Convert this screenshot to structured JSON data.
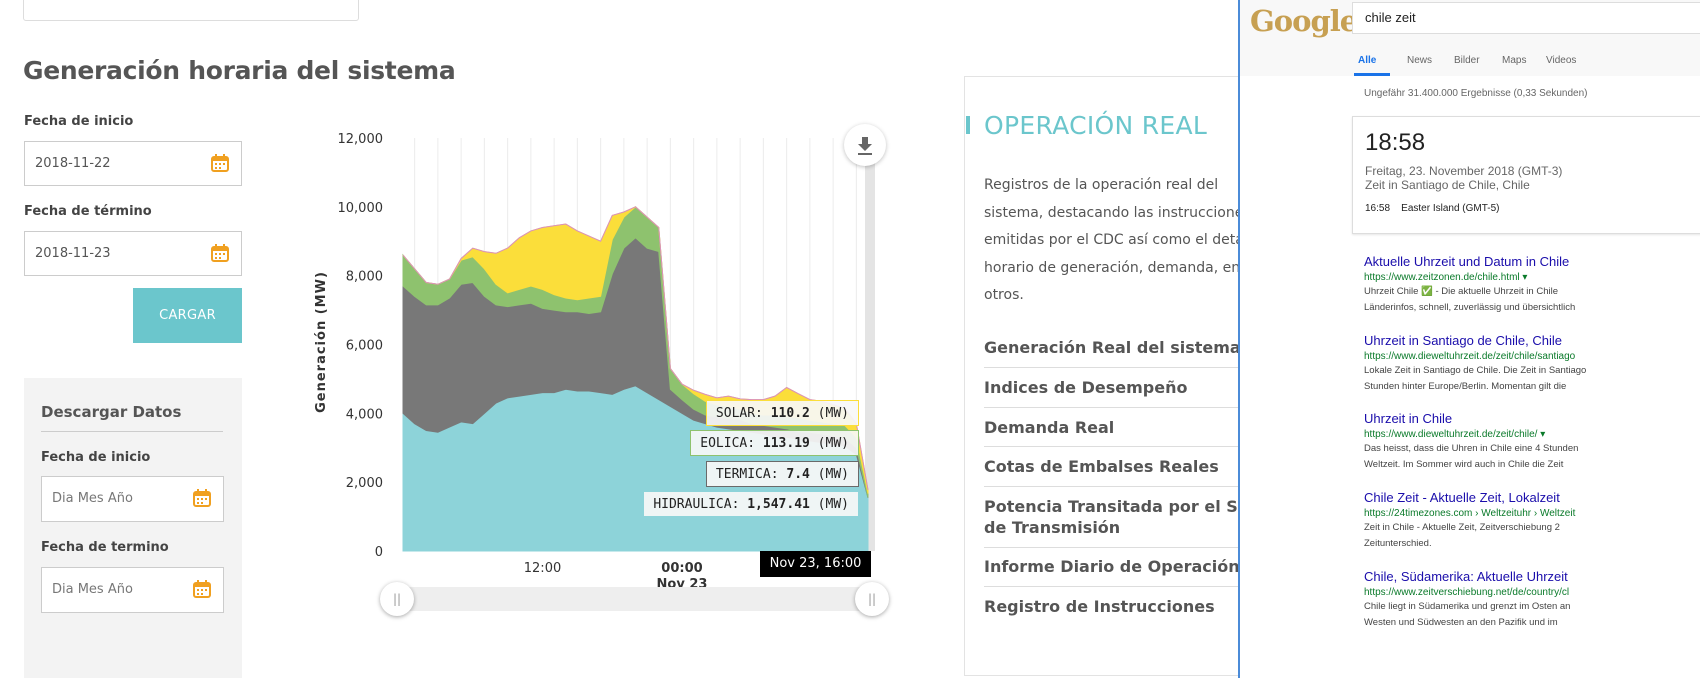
{
  "page": {
    "title": "Generación horaria del sistema",
    "fecha_inicio_label": "Fecha de inicio",
    "fecha_inicio_value": "2018-11-22",
    "fecha_termino_label": "Fecha de término",
    "fecha_termino_value": "2018-11-23",
    "cargar_label": "CARGAR",
    "descargar": {
      "title": "Descargar Datos",
      "inicio_label": "Fecha de inicio",
      "inicio_placeholder": "Dia Mes Año",
      "termino_label": "Fecha de termino",
      "termino_placeholder": "Dia Mes Año"
    },
    "accent_color": "#6bc6cc",
    "icon_color": "#f0a020"
  },
  "chart_data": {
    "type": "area",
    "stacked": true,
    "ylabel": "Generación (MW)",
    "ylim": [
      0,
      12000
    ],
    "yticks": [
      0,
      2000,
      4000,
      6000,
      8000,
      10000,
      12000
    ],
    "ytick_labels": [
      "0",
      "2,000",
      "4,000",
      "6,000",
      "8,000",
      "10,000",
      "12,000"
    ],
    "xtick_labels": [
      {
        "label": "12:00",
        "x": 12
      },
      {
        "label": "00:00",
        "sublabel": "Nov 23",
        "x": 24
      }
    ],
    "x_hours": [
      0,
      1,
      2,
      3,
      4,
      5,
      6,
      7,
      8,
      9,
      10,
      11,
      12,
      13,
      14,
      15,
      16,
      17,
      18,
      19,
      20,
      21,
      22,
      23,
      24,
      25,
      26,
      27,
      28,
      29,
      30,
      31,
      32,
      33,
      34,
      35,
      36,
      37,
      38,
      39,
      40
    ],
    "series": [
      {
        "name": "HIDRAULICA",
        "color": "#8dd3d9",
        "values": [
          4000,
          3700,
          3500,
          3450,
          3600,
          3750,
          3700,
          4000,
          4300,
          4450,
          4500,
          4550,
          4600,
          4600,
          4700,
          4650,
          4650,
          4600,
          4550,
          4700,
          4800,
          4600,
          4400,
          4200,
          4000,
          3800,
          3700,
          3600,
          3550,
          3500,
          3450,
          3400,
          3300,
          3300,
          3250,
          3200,
          3150,
          3100,
          3050,
          2800,
          1547
        ]
      },
      {
        "name": "TERMICA",
        "color": "#787878",
        "values": [
          3700,
          3700,
          3650,
          3700,
          3750,
          4000,
          4100,
          3400,
          2850,
          2650,
          2650,
          2650,
          2450,
          2400,
          2250,
          2300,
          2250,
          2350,
          3500,
          4100,
          4300,
          4200,
          4300,
          500,
          400,
          320,
          250,
          300,
          300,
          320,
          250,
          250,
          300,
          250,
          220,
          250,
          250,
          250,
          250,
          200,
          7.4
        ]
      },
      {
        "name": "EOLICA",
        "color": "#8ec26e",
        "values": [
          900,
          800,
          650,
          600,
          550,
          700,
          750,
          800,
          600,
          400,
          450,
          500,
          550,
          450,
          400,
          350,
          450,
          450,
          1000,
          900,
          900,
          900,
          700,
          600,
          450,
          450,
          400,
          350,
          350,
          300,
          300,
          300,
          350,
          350,
          400,
          350,
          350,
          350,
          350,
          300,
          113.19
        ]
      },
      {
        "name": "SOLAR",
        "color": "#fbde3a",
        "values": [
          0,
          0,
          0,
          0,
          0,
          50,
          250,
          500,
          900,
          1300,
          1500,
          1600,
          1800,
          2000,
          2150,
          2000,
          1800,
          1600,
          700,
          150,
          0,
          0,
          0,
          0,
          0,
          100,
          200,
          200,
          300,
          300,
          400,
          450,
          550,
          850,
          700,
          600,
          600,
          550,
          500,
          400,
          110.2
        ]
      }
    ],
    "tooltips": [
      {
        "name": "SOLAR",
        "value": "110.2",
        "unit": "(MW)"
      },
      {
        "name": "EOLICA",
        "value": "113.19",
        "unit": "(MW)"
      },
      {
        "name": "TERMICA",
        "value": "7.4",
        "unit": "(MW)"
      },
      {
        "name": "HIDRAULICA",
        "value": "1,547.41",
        "unit": "(MW)"
      }
    ],
    "hover_label": "Nov 23, 16:00"
  },
  "operacion": {
    "title": "OPERACIÓN REAL",
    "desc_lines": [
      "Registros de la operación real del",
      "sistema, destacando las instrucciones",
      "emitidas por el CDC así como el detalle",
      "horario de generación, demanda, entre",
      "otros."
    ],
    "links": [
      "Generación Real del sistema",
      "Indices de Desempeño",
      "Demanda Real",
      "Cotas de Embalses Reales",
      "Potencia Transitada por el Sistema",
      "de Transmisión",
      "Informe Diario de Operación",
      "Registro de Instrucciones"
    ]
  },
  "google": {
    "logo": "Google",
    "query": "chile zeit",
    "tabs": [
      "Alle",
      "News",
      "Bilder",
      "Maps",
      "Videos"
    ],
    "stats": "Ungefähr 31.400.000 Ergebnisse (0,33 Sekunden)",
    "card": {
      "time": "18:58",
      "date": "Freitag, 23. November 2018 (GMT-3)",
      "place": "Zeit in Santiago de Chile, Chile",
      "other_time": "16:58",
      "other_place": "Easter Island (GMT-5)"
    },
    "results": [
      {
        "title": "Aktuelle Uhrzeit und Datum in Chile",
        "url": "https://www.zeitzonen.de/chile.html ▾",
        "s1": "Uhrzeit Chile ✅ - Die aktuelle Uhrzeit in Chile",
        "s2": "Länderinfos, schnell, zuverlässig und übersichtlich"
      },
      {
        "title": "Uhrzeit in Santiago de Chile, Chile",
        "url": "https://www.dieweltuhrzeit.de/zeit/chile/santiago",
        "s1": "Lokale Zeit in Santiago de Chile. Die Zeit in Santiago",
        "s2": "Stunden hinter Europe/Berlin. Momentan gilt die"
      },
      {
        "title": "Uhrzeit in Chile",
        "url": "https://www.dieweltuhrzeit.de/zeit/chile/ ▾",
        "s1": "Das heisst, dass die Uhren in Chile eine 4 Stunden",
        "s2": "Weltzeit. Im Sommer wird auch in Chile die Zeit"
      },
      {
        "title": "Chile Zeit - Aktuelle Zeit, Lokalzeit",
        "url": "https://24timezones.com › Weltzeituhr › Weltzeit",
        "s1": "Zeit in Chile - Aktuelle Zeit, Zeitverschiebung 2",
        "s2": "Zeitunterschied."
      },
      {
        "title": "Chile, Südamerika: Aktuelle Uhrzeit",
        "url": "https://www.zeitverschiebung.net/de/country/cl",
        "s1": "Chile liegt in Südamerika und grenzt im Osten an",
        "s2": "Westen und Südwesten an den Pazifik und im"
      }
    ]
  }
}
